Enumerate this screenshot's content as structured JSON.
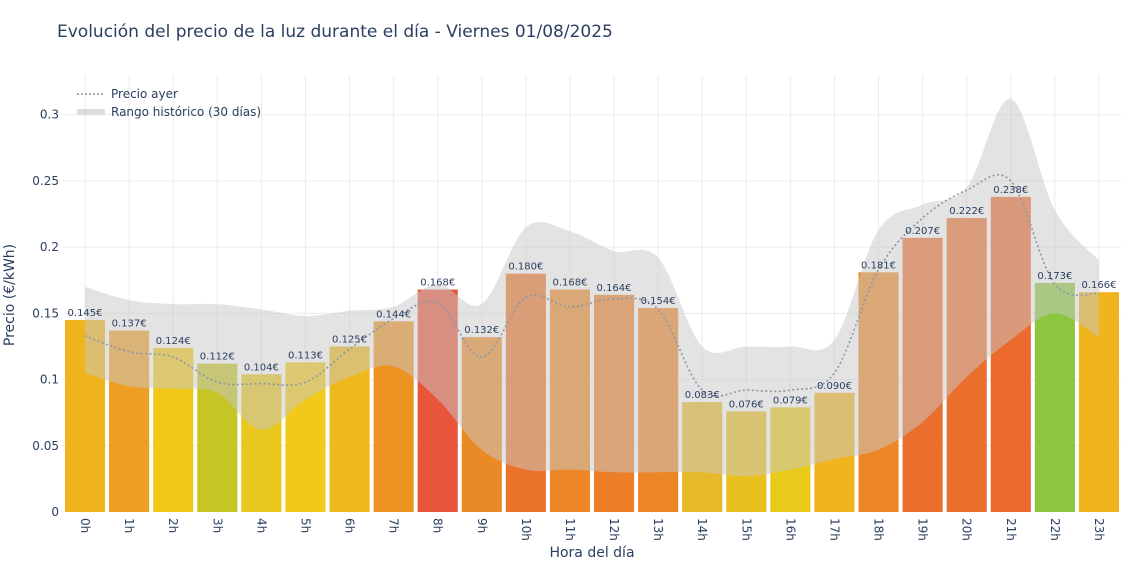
{
  "chart_data": {
    "type": "bar",
    "title": "Evolución del precio de la luz durante el día - Viernes 01/08/2025",
    "xlabel": "Hora del día",
    "ylabel": "Precio (€/kWh)",
    "ylim": [
      0,
      0.33
    ],
    "y_ticks": [
      "0",
      "0.05",
      "0.1",
      "0.15",
      "0.2",
      "0.25",
      "0.3"
    ],
    "categories": [
      "0h",
      "1h",
      "2h",
      "3h",
      "4h",
      "5h",
      "6h",
      "7h",
      "8h",
      "9h",
      "10h",
      "11h",
      "12h",
      "13h",
      "14h",
      "15h",
      "16h",
      "17h",
      "18h",
      "19h",
      "20h",
      "21h",
      "22h",
      "23h"
    ],
    "values": [
      0.145,
      0.137,
      0.124,
      0.112,
      0.104,
      0.113,
      0.125,
      0.144,
      0.168,
      0.132,
      0.18,
      0.168,
      0.164,
      0.154,
      0.083,
      0.076,
      0.079,
      0.09,
      0.181,
      0.207,
      0.222,
      0.238,
      0.173,
      0.166
    ],
    "value_labels": [
      "0.145€",
      "0.137€",
      "0.124€",
      "0.112€",
      "0.104€",
      "0.113€",
      "0.125€",
      "0.144€",
      "0.168€",
      "0.132€",
      "0.180€",
      "0.168€",
      "0.164€",
      "0.154€",
      "0.083€",
      "0.076€",
      "0.079€",
      "0.090€",
      "0.181€",
      "0.207€",
      "0.222€",
      "0.238€",
      "0.173€",
      "0.166€"
    ],
    "bar_colors": [
      "#f0b41c",
      "#ec9f24",
      "#f0c81a",
      "#c6c526",
      "#e9c71c",
      "#f0c91a",
      "#eeb91c",
      "#ec9322",
      "#e8553a",
      "#ea8a27",
      "#ea7229",
      "#ec8627",
      "#ed7f29",
      "#ec8526",
      "#e6b92a",
      "#e8c11f",
      "#e9c919",
      "#f0b41e",
      "#ed8726",
      "#ea6f2c",
      "#ea6e2c",
      "#ec6a2e",
      "#8cc63f",
      "#f0b41c"
    ],
    "series": [
      {
        "name": "Precio ayer",
        "style": "dotted",
        "color": "#8a97a8",
        "values": [
          0.133,
          0.121,
          0.117,
          0.098,
          0.097,
          0.098,
          0.123,
          0.146,
          0.158,
          0.117,
          0.162,
          0.155,
          0.161,
          0.153,
          0.092,
          0.092,
          0.092,
          0.105,
          0.183,
          0.222,
          0.243,
          0.25,
          0.172,
          0.165
        ]
      },
      {
        "name": "Rango histórico (30 días)",
        "style": "band",
        "color": "#dcdcdc",
        "lower": [
          0.105,
          0.095,
          0.093,
          0.09,
          0.062,
          0.085,
          0.102,
          0.11,
          0.085,
          0.047,
          0.032,
          0.032,
          0.03,
          0.03,
          0.03,
          0.027,
          0.032,
          0.04,
          0.047,
          0.068,
          0.102,
          0.13,
          0.15,
          0.132
        ],
        "upper": [
          0.17,
          0.16,
          0.157,
          0.157,
          0.153,
          0.148,
          0.152,
          0.155,
          0.172,
          0.157,
          0.215,
          0.212,
          0.197,
          0.192,
          0.125,
          0.125,
          0.125,
          0.13,
          0.213,
          0.232,
          0.245,
          0.312,
          0.228,
          0.19
        ]
      }
    ],
    "legend_position": "top-left",
    "grid": true
  }
}
